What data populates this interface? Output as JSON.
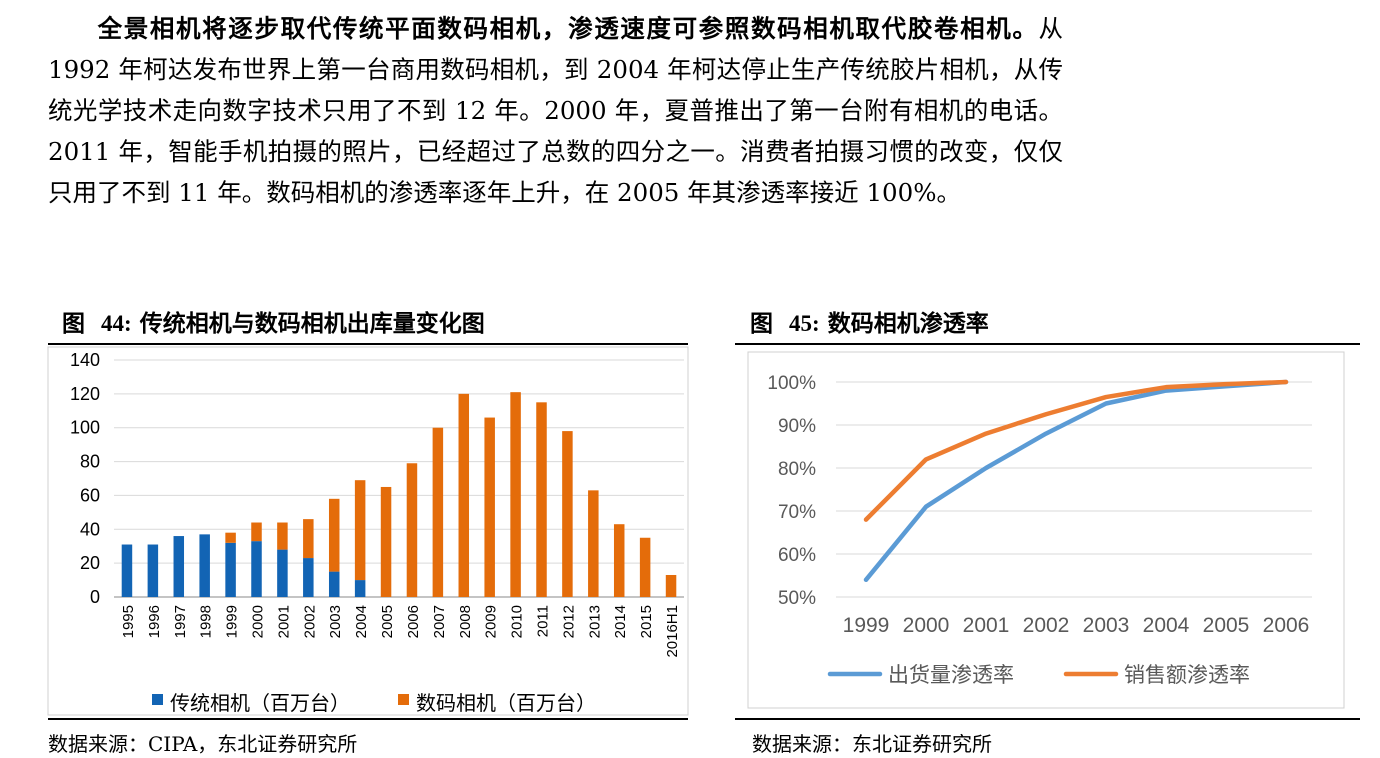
{
  "paragraph": {
    "lead": "全景相机将逐步取代传统平面数码相机，渗透速度可参照数码相机取代胶卷相机。",
    "body": "从 1992 年柯达发布世界上第一台商用数码相机，到 2004 年柯达停止生产传统胶片相机，从传统光学技术走向数字技术只用了不到 12 年。2000 年，夏普推出了第一台附有相机的电话。2011 年，智能手机拍摄的照片，已经超过了总数的四分之一。消费者拍摄习惯的改变，仅仅只用了不到 11 年。数码相机的渗透率逐年上升，在 2005 年其渗透率接近 100%。"
  },
  "figures": [
    {
      "label": "图",
      "number": "44:",
      "title": "传统相机与数码相机出库量变化图",
      "source": "数据来源：CIPA，东北证券研究所"
    },
    {
      "label": "图",
      "number": "45:",
      "title": "数码相机渗透率",
      "source": "数据来源：东北证券研究所"
    }
  ],
  "colors": {
    "blue": "#1264B4",
    "orange": "#E46C0A",
    "line_blue": "#5B9BD5",
    "line_orange": "#ED7D31"
  },
  "chart_data": [
    {
      "type": "bar",
      "stacked": true,
      "categories": [
        "1995",
        "1996",
        "1997",
        "1998",
        "1999",
        "2000",
        "2001",
        "2002",
        "2003",
        "2004",
        "2005",
        "2006",
        "2007",
        "2008",
        "2009",
        "2010",
        "2011",
        "2012",
        "2013",
        "2014",
        "2015",
        "2016H1"
      ],
      "series": [
        {
          "name": "传统相机（百万台）",
          "color": "#1264B4",
          "values": [
            31,
            31,
            36,
            37,
            32,
            33,
            28,
            23,
            15,
            10,
            0,
            0,
            0,
            0,
            0,
            0,
            0,
            0,
            0,
            0,
            0,
            0
          ]
        },
        {
          "name": "数码相机（百万台）",
          "color": "#E46C0A",
          "values": [
            0,
            0,
            0,
            0,
            6,
            11,
            16,
            23,
            43,
            59,
            65,
            79,
            100,
            120,
            106,
            121,
            115,
            98,
            63,
            43,
            35,
            13
          ]
        }
      ],
      "yticks": [
        "0",
        "20",
        "40",
        "60",
        "80",
        "100",
        "120",
        "140"
      ],
      "ylim": [
        0,
        140
      ],
      "grid": true,
      "legend": "bottom"
    },
    {
      "type": "line",
      "categories": [
        "1999",
        "2000",
        "2001",
        "2002",
        "2003",
        "2004",
        "2005",
        "2006"
      ],
      "series": [
        {
          "name": "出货量渗透率",
          "color": "#5B9BD5",
          "values": [
            54,
            71,
            80,
            88,
            95,
            98,
            99,
            100
          ]
        },
        {
          "name": "销售额渗透率",
          "color": "#ED7D31",
          "values": [
            68,
            82,
            88,
            92.5,
            96.5,
            98.8,
            99.5,
            100
          ]
        }
      ],
      "yticks": [
        "50%",
        "60%",
        "70%",
        "80%",
        "90%",
        "100%"
      ],
      "ylim": [
        50,
        100
      ],
      "grid": true,
      "legend": "bottom"
    }
  ]
}
